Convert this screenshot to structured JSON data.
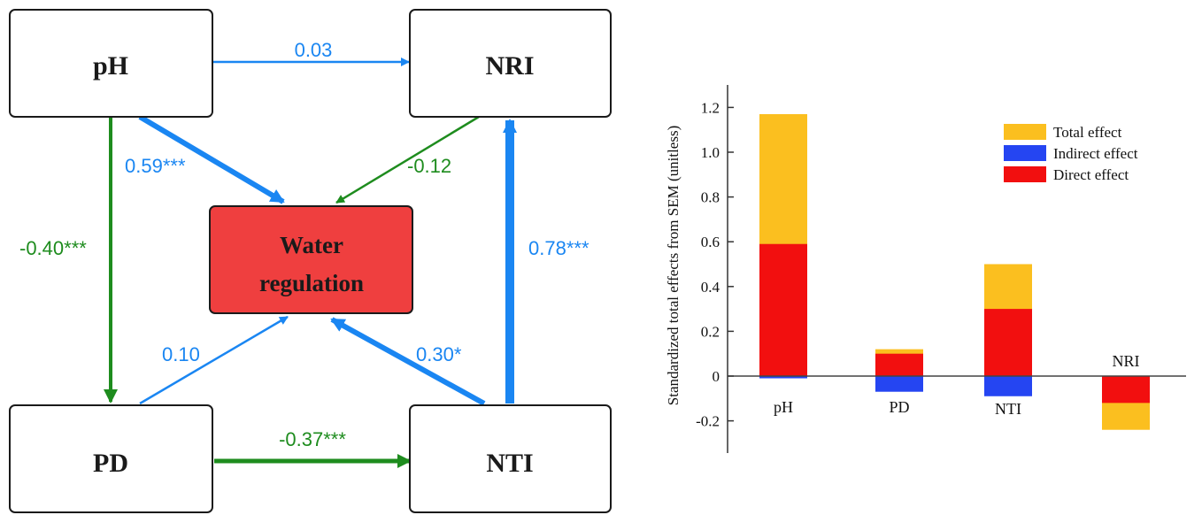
{
  "colors": {
    "blue": "#1a86f2",
    "green": "#1e8c1e",
    "center_fill": "#ef3f3f",
    "total": "#fbbf1f",
    "indirect": "#2545f2",
    "direct": "#f20f0f"
  },
  "diagram": {
    "nodes": {
      "ph": "pH",
      "nri": "NRI",
      "pd": "PD",
      "nti": "NTI",
      "center_line1": "Water",
      "center_line2": "regulation"
    },
    "edges": {
      "ph_nri": "0.03",
      "ph_center": "0.59***",
      "nri_center": "-0.12",
      "ph_pd": "-0.40***",
      "nti_nri": "0.78***",
      "pd_center": "0.10",
      "nti_center": "0.30*",
      "pd_nti": "-0.37***"
    }
  },
  "chart_data": {
    "type": "bar",
    "ylabel": "Standardized total effects from SEM (unitless)",
    "ylim": [
      -0.3,
      1.3
    ],
    "yticks": [
      "-0.2",
      "0",
      "0.2",
      "0.4",
      "0.6",
      "0.8",
      "1.0",
      "1.2"
    ],
    "categories": [
      "pH",
      "PD",
      "NTI",
      "NRI"
    ],
    "series": [
      {
        "name": "Total effect",
        "values": [
          1.17,
          0.12,
          0.5,
          -0.24
        ]
      },
      {
        "name": "Indirect effect",
        "values": [
          -0.01,
          -0.07,
          -0.09,
          0
        ]
      },
      {
        "name": "Direct effect",
        "values": [
          0.59,
          0.1,
          0.3,
          -0.12
        ]
      }
    ],
    "legend": [
      "Total effect",
      "Indirect effect",
      "Direct effect"
    ]
  }
}
